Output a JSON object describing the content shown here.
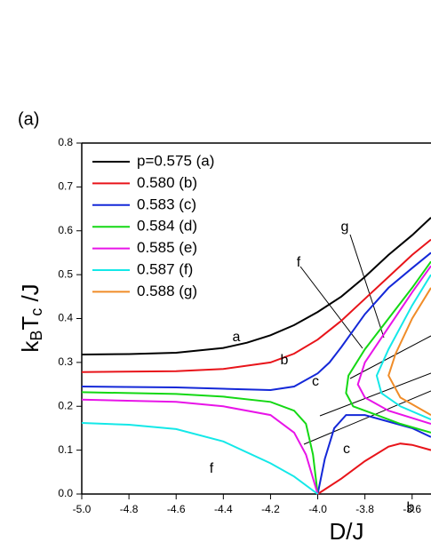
{
  "chart_data": {
    "type": "line",
    "panel_label": "(a)",
    "x_label": "D/J",
    "y_label_parts": [
      "k",
      "B",
      "T",
      "c",
      " /J"
    ],
    "xlim": [
      -5.0,
      -3.52
    ],
    "ylim": [
      0,
      0.8
    ],
    "xticks": [
      {
        "value": -5,
        "label": "-5.0"
      },
      -4.8,
      -4.6,
      -4.4,
      -4.2,
      {
        "value": -4,
        "label": "-4.0"
      },
      -3.8,
      -3.6
    ],
    "yticks": [
      {
        "value": 0,
        "label": "0.0"
      },
      0.1,
      0.2,
      0.3,
      0.4,
      0.5,
      0.6,
      0.7,
      0.8
    ],
    "legend": "upper left",
    "annotations": [
      "a",
      "b",
      "c",
      "f",
      "c",
      "b",
      "f",
      "g"
    ],
    "series": [
      {
        "name": "p=0.575 (a)",
        "color": "#000000",
        "x": [
          -5,
          -4.8,
          -4.6,
          -4.4,
          -4.3,
          -4.2,
          -4.1,
          -4.0,
          -3.9,
          -3.8,
          -3.7,
          -3.6,
          -3.52
        ],
        "values": [
          0.318,
          0.319,
          0.322,
          0.333,
          0.345,
          0.362,
          0.385,
          0.415,
          0.45,
          0.495,
          0.545,
          0.59,
          0.63
        ]
      },
      {
        "name": "0.580 (b)",
        "color": "#e8141a",
        "x": [
          -5,
          -4.6,
          -4.4,
          -4.2,
          -4.1,
          -4.0,
          -3.9,
          -3.8,
          -3.7,
          -3.6,
          -3.52,
          null,
          -4.0,
          -3.9,
          -3.8,
          -3.7,
          -3.65,
          -3.6,
          -3.52
        ],
        "values": [
          0.278,
          0.28,
          0.285,
          0.3,
          0.32,
          0.352,
          0.395,
          0.445,
          0.495,
          0.545,
          0.58,
          null,
          0,
          0.035,
          0.075,
          0.108,
          0.115,
          0.112,
          0.1
        ]
      },
      {
        "name": "0.583 (c)",
        "color": "#1428d8",
        "x": [
          -5,
          -4.6,
          -4.4,
          -4.2,
          -4.1,
          -4.0,
          -3.95,
          -3.9,
          -3.8,
          -3.7,
          -3.6,
          -3.52,
          null,
          -4.0,
          -3.97,
          -3.93,
          -3.88,
          -3.8,
          -3.7,
          -3.6,
          -3.52
        ],
        "values": [
          0.245,
          0.243,
          0.24,
          0.237,
          0.245,
          0.275,
          0.3,
          0.335,
          0.41,
          0.47,
          0.515,
          0.55,
          null,
          0,
          0.08,
          0.15,
          0.18,
          0.18,
          0.165,
          0.15,
          0.13
        ]
      },
      {
        "name": "0.584 (d)",
        "color": "#14d814",
        "x": [
          -5,
          -4.6,
          -4.4,
          -4.2,
          -4.1,
          -4.05,
          -4.02,
          -4.0,
          null,
          -3.52,
          -3.65,
          -3.75,
          -3.85,
          -3.88,
          -3.87,
          -3.8,
          -3.7,
          -3.6,
          -3.52
        ],
        "values": [
          0.232,
          0.228,
          0.222,
          0.21,
          0.19,
          0.16,
          0.09,
          0,
          null,
          0.14,
          0.16,
          0.18,
          0.2,
          0.23,
          0.27,
          0.33,
          0.4,
          0.47,
          0.53
        ]
      },
      {
        "name": "0.585 (e)",
        "color": "#e814e8",
        "x": [
          -5,
          -4.6,
          -4.4,
          -4.2,
          -4.1,
          -4.05,
          -4.0,
          null,
          -3.52,
          -3.7,
          -3.8,
          -3.83,
          -3.8,
          -3.7,
          -3.6,
          -3.52
        ],
        "values": [
          0.215,
          0.21,
          0.2,
          0.18,
          0.14,
          0.09,
          0,
          null,
          0.16,
          0.19,
          0.22,
          0.25,
          0.3,
          0.38,
          0.46,
          0.52
        ]
      },
      {
        "name": "0.587 (f)",
        "color": "#14e8e8",
        "x": [
          -5,
          -4.8,
          -4.6,
          -4.4,
          -4.2,
          -4.1,
          -4.0,
          null,
          -3.52,
          -3.65,
          -3.73,
          -3.75,
          -3.7,
          -3.6,
          -3.52
        ],
        "values": [
          0.162,
          0.158,
          0.148,
          0.12,
          0.07,
          0.04,
          0,
          null,
          0.17,
          0.2,
          0.23,
          0.27,
          0.33,
          0.43,
          0.5
        ]
      },
      {
        "name": "0.588 (g)",
        "color": "#f08c28",
        "x": [
          -3.52,
          -3.65,
          -3.7,
          -3.67,
          -3.6,
          -3.52
        ],
        "values": [
          0.18,
          0.22,
          0.27,
          0.32,
          0.4,
          0.47
        ]
      }
    ]
  }
}
